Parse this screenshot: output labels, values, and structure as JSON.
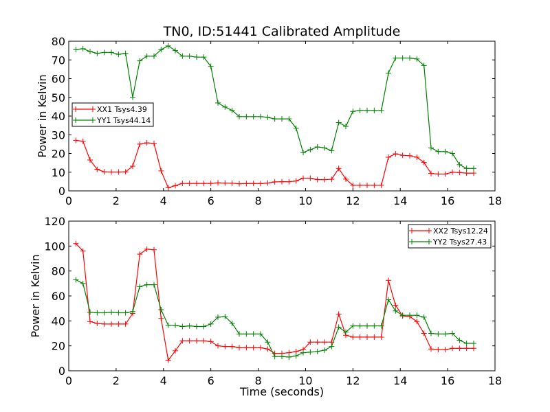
{
  "title": "TN0, ID:51441 Calibrated Amplitude",
  "colors": {
    "red": "#ff0000",
    "green": "#008000"
  },
  "chart_data": [
    {
      "type": "line",
      "title": "TN0, ID:51441 Calibrated Amplitude",
      "xlabel": "",
      "ylabel": "Power in Kelvin",
      "xlim": [
        0,
        18
      ],
      "ylim": [
        0,
        80
      ],
      "xticks": [
        "0",
        "2",
        "4",
        "6",
        "8",
        "10",
        "12",
        "14",
        "16",
        "18"
      ],
      "yticks": [
        "0",
        "10",
        "20",
        "30",
        "40",
        "50",
        "60",
        "70",
        "80"
      ],
      "legend_position": "center-left",
      "grid": false,
      "x": [
        0.3,
        0.6,
        0.9,
        1.2,
        1.5,
        1.8,
        2.1,
        2.4,
        2.7,
        3.0,
        3.3,
        3.6,
        3.9,
        4.2,
        4.5,
        4.8,
        5.1,
        5.4,
        5.7,
        6.0,
        6.3,
        6.6,
        6.9,
        7.2,
        7.5,
        7.8,
        8.1,
        8.4,
        8.7,
        9.0,
        9.3,
        9.6,
        9.9,
        10.2,
        10.5,
        10.8,
        11.1,
        11.4,
        11.7,
        12.0,
        12.3,
        12.6,
        12.9,
        13.2,
        13.5,
        13.8,
        14.1,
        14.4,
        14.7,
        15.0,
        15.3,
        15.6,
        15.9,
        16.2,
        16.5,
        16.8,
        17.1
      ],
      "series": [
        {
          "name": "XX1 Tsys4.39",
          "color": "#ff0000",
          "values": [
            27,
            26.5,
            16.5,
            11.5,
            10.2,
            10.1,
            10.1,
            10.2,
            13.2,
            25,
            25.7,
            25.4,
            10.7,
            1.7,
            2.8,
            4,
            4,
            4,
            4,
            4,
            4.3,
            4.2,
            4.1,
            3.8,
            3.9,
            4,
            3.9,
            4.2,
            4.8,
            4.9,
            4.9,
            5.3,
            6.8,
            6.8,
            6,
            6,
            6.2,
            12,
            6.3,
            3,
            3,
            3,
            3,
            3,
            18,
            19.8,
            19,
            18.8,
            18,
            15.2,
            9.3,
            9,
            9,
            10,
            9.8,
            9.5,
            9.5
          ]
        },
        {
          "name": "YY1 Tsys44.14",
          "color": "#008000",
          "values": [
            75.5,
            76,
            74.5,
            73.5,
            74,
            74,
            73,
            73.5,
            50,
            69.5,
            72,
            72,
            75.5,
            77.5,
            75,
            72,
            72,
            71.5,
            71.5,
            66.5,
            47,
            44.8,
            43,
            39.7,
            39.7,
            39.7,
            39.7,
            39.3,
            38.5,
            38.5,
            38.5,
            33.5,
            20.5,
            22,
            23.5,
            23,
            21.5,
            36.5,
            34.5,
            42.5,
            43,
            43,
            43,
            43,
            63,
            71,
            71,
            71,
            70.5,
            67,
            23,
            21,
            21,
            20,
            14,
            12,
            12
          ]
        }
      ]
    },
    {
      "type": "line",
      "title": "",
      "xlabel": "Time (seconds)",
      "ylabel": "Power in Kelvin",
      "xlim": [
        0,
        18
      ],
      "ylim": [
        0,
        120
      ],
      "xticks": [
        "0",
        "2",
        "4",
        "6",
        "8",
        "10",
        "12",
        "14",
        "16",
        "18"
      ],
      "yticks": [
        "0",
        "20",
        "40",
        "60",
        "80",
        "100",
        "120"
      ],
      "legend_position": "top-right",
      "grid": false,
      "x": [
        0.3,
        0.6,
        0.9,
        1.2,
        1.5,
        1.8,
        2.1,
        2.4,
        2.7,
        3.0,
        3.3,
        3.6,
        3.9,
        4.2,
        4.5,
        4.8,
        5.1,
        5.4,
        5.7,
        6.0,
        6.3,
        6.6,
        6.9,
        7.2,
        7.5,
        7.8,
        8.1,
        8.4,
        8.7,
        9.0,
        9.3,
        9.6,
        9.9,
        10.2,
        10.5,
        10.8,
        11.1,
        11.4,
        11.7,
        12.0,
        12.3,
        12.6,
        12.9,
        13.2,
        13.5,
        13.8,
        14.1,
        14.4,
        14.7,
        15.0,
        15.3,
        15.6,
        15.9,
        16.2,
        16.5,
        16.8,
        17.1
      ],
      "series": [
        {
          "name": "XX2 Tsys12.24",
          "color": "#ff0000",
          "values": [
            102,
            96,
            39.5,
            38,
            37.5,
            37.5,
            37.5,
            37.5,
            46,
            93.5,
            97.5,
            97,
            42,
            8.5,
            16,
            24,
            24,
            24,
            24,
            23.5,
            20,
            19.5,
            19.5,
            18.5,
            18.5,
            18.5,
            18.5,
            17.5,
            14,
            14,
            14.5,
            15.5,
            17,
            23,
            23,
            23,
            23,
            45.5,
            28.5,
            27,
            27,
            27,
            27,
            27,
            72.5,
            52.5,
            44,
            43.5,
            39.5,
            30,
            17.5,
            17,
            17,
            18,
            18,
            18,
            18
          ]
        },
        {
          "name": "YY2 Tsys27.43",
          "color": "#008000",
          "values": [
            73,
            70,
            47,
            46.5,
            46.5,
            47,
            46.5,
            46.5,
            47.5,
            67.5,
            69,
            69,
            49,
            36.5,
            36.5,
            35.5,
            36,
            35.5,
            35.5,
            37.5,
            43,
            43.5,
            38,
            29.5,
            29.5,
            29.5,
            29.5,
            23,
            11.5,
            11.5,
            11,
            12,
            14.5,
            15,
            15.5,
            16.5,
            19.5,
            35,
            31,
            36,
            36,
            36,
            36,
            36,
            57,
            48,
            44.5,
            44.5,
            44.5,
            43,
            30,
            29.5,
            29.5,
            30,
            24.5,
            22,
            22
          ]
        }
      ]
    }
  ]
}
